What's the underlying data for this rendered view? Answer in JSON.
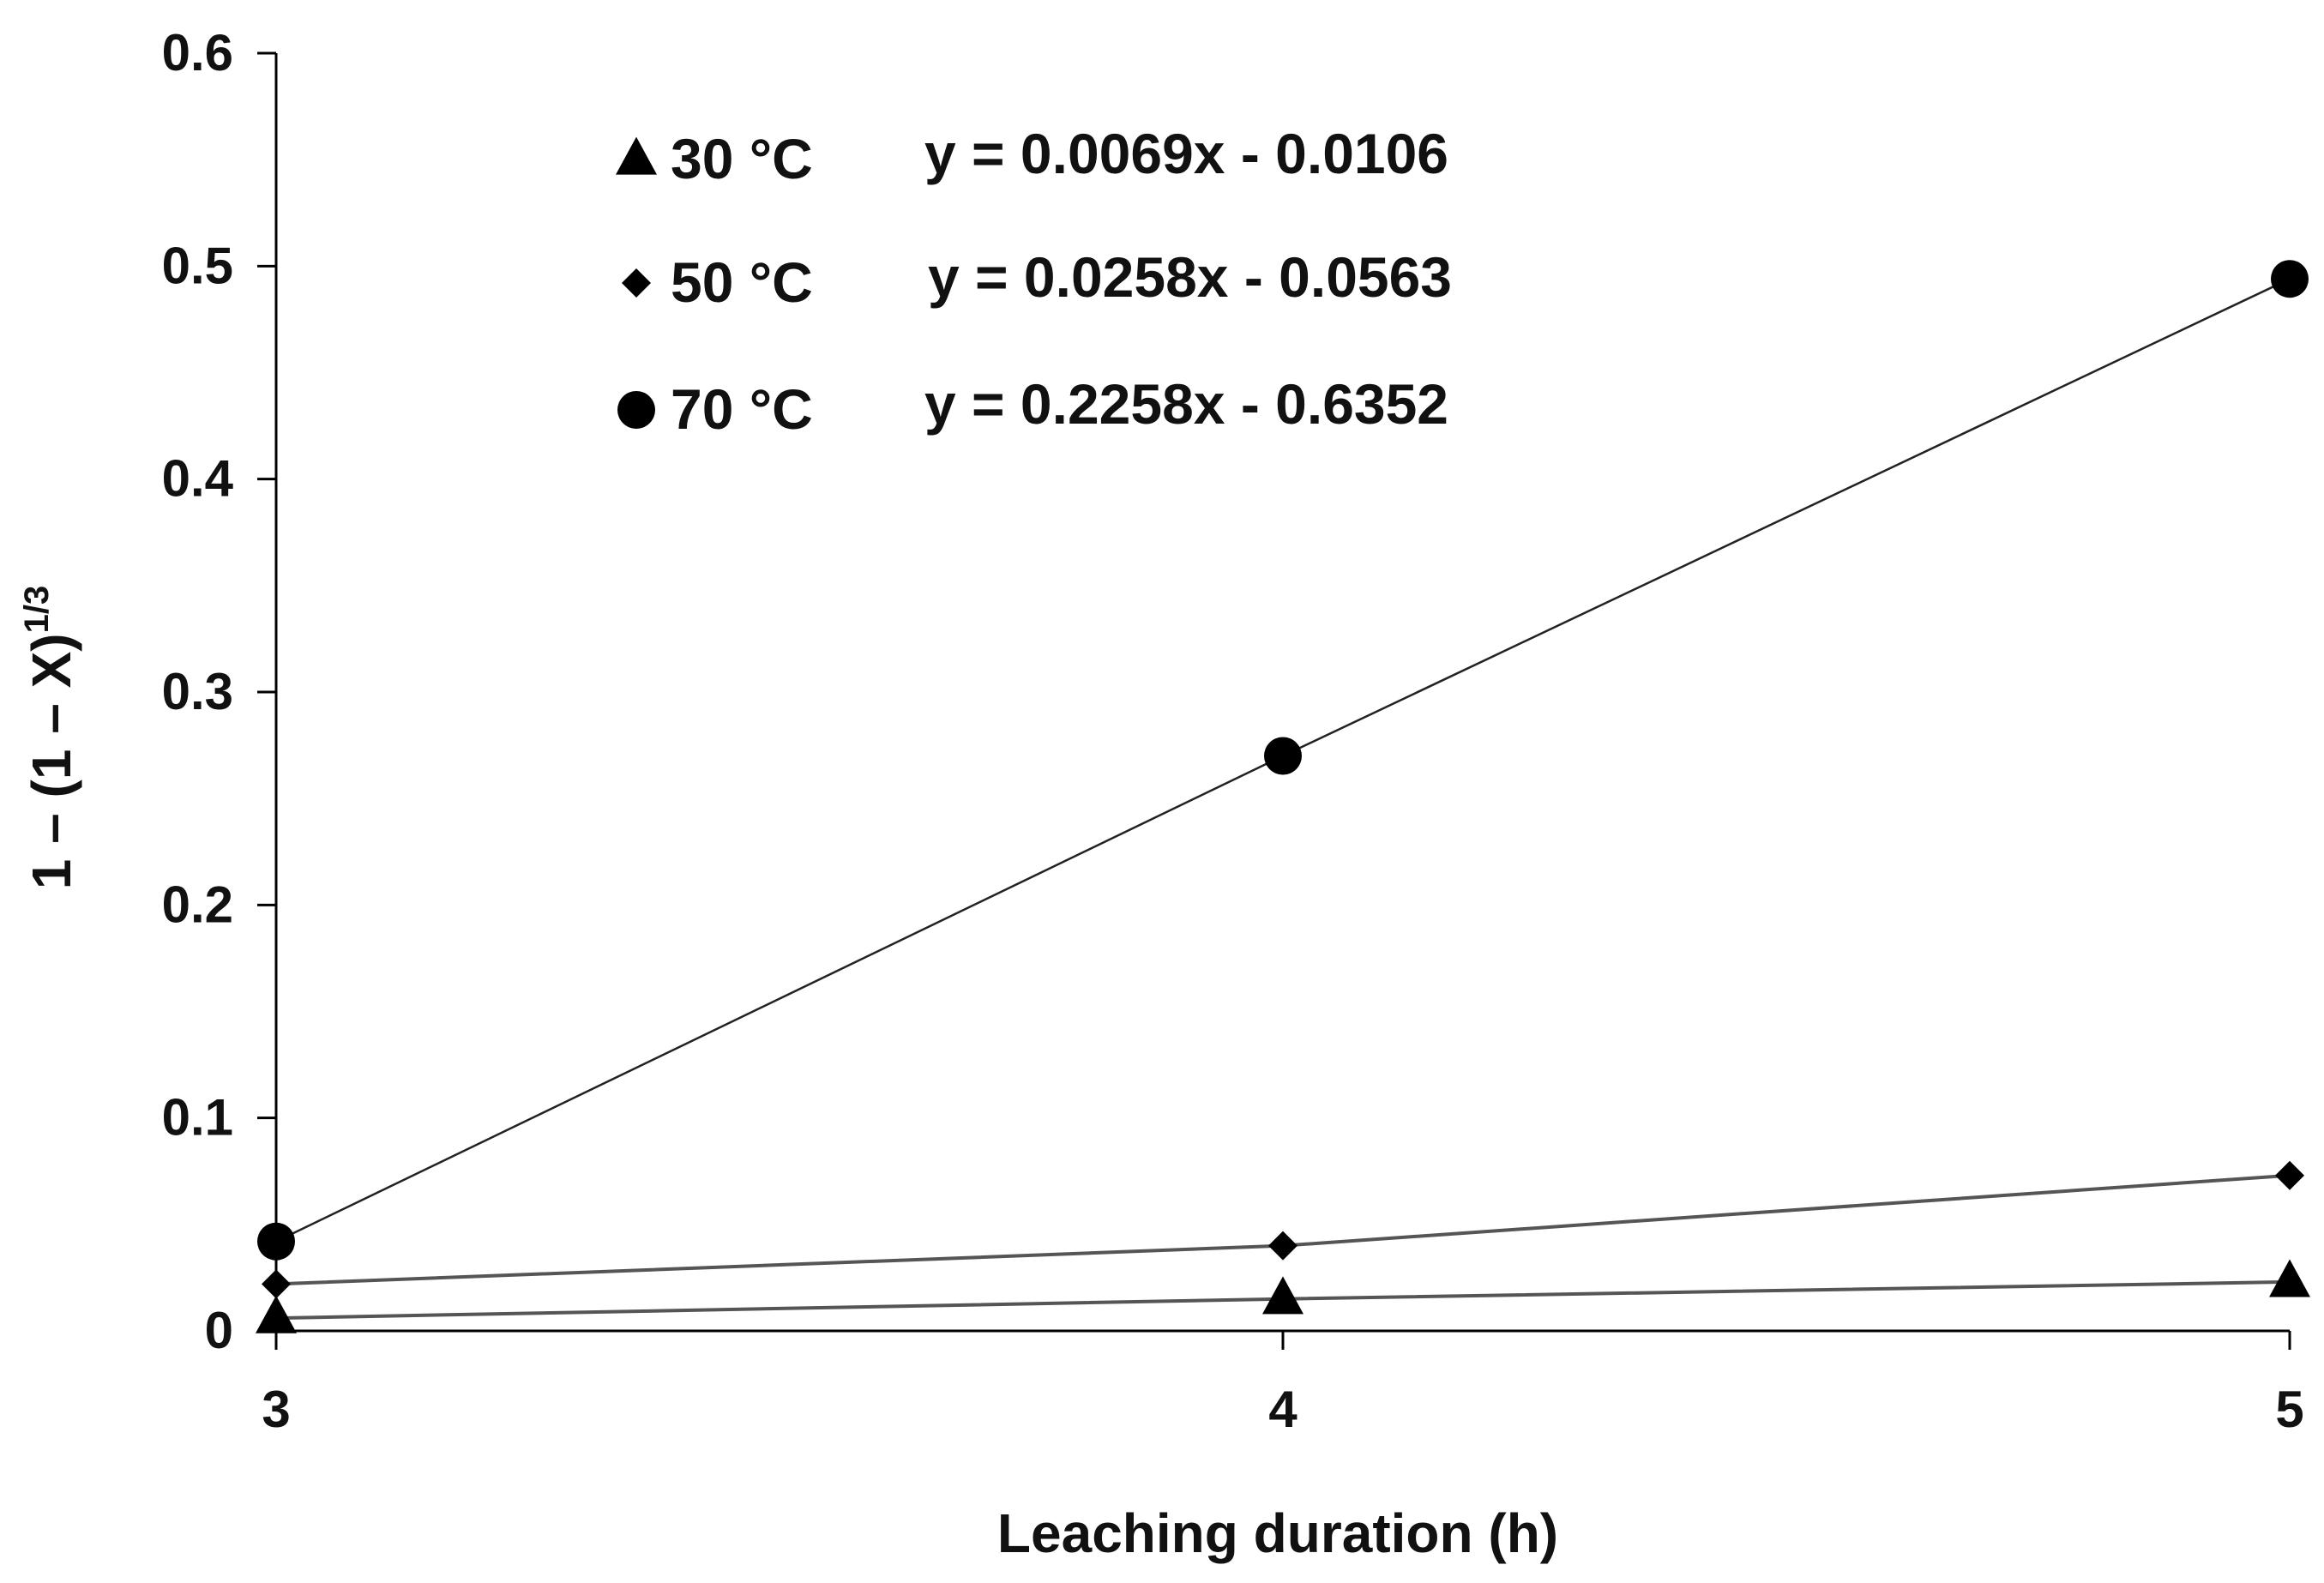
{
  "chart_data": {
    "type": "scatter",
    "xlabel": "Leaching duration (h)",
    "ylabel": "1 – (1 – X)",
    "ylabel_superscript": "1/3",
    "xlim": [
      3,
      5
    ],
    "ylim": [
      0,
      0.6
    ],
    "x_ticks": [
      "3",
      "4",
      "5"
    ],
    "y_ticks": [
      "0",
      "0.1",
      "0.2",
      "0.3",
      "0.4",
      "0.5",
      "0.6"
    ],
    "grid": false,
    "legend_position": "top-left",
    "series": [
      {
        "name": "30 °C",
        "marker": "triangle",
        "x": [
          3,
          4,
          5
        ],
        "y": [
          0.006,
          0.015,
          0.023
        ],
        "fit_equation": "y = 0.0069x  - 0.0106",
        "fit": {
          "slope": 0.0069,
          "intercept": -0.0106
        }
      },
      {
        "name": "50 °C",
        "marker": "diamond",
        "x": [
          3,
          4,
          5
        ],
        "y": [
          0.022,
          0.04,
          0.073
        ],
        "fit_equation": "y = 0.0258x  - 0.0563",
        "fit": {
          "slope": 0.0258,
          "intercept": -0.0563
        }
      },
      {
        "name": "70 °C",
        "marker": "circle",
        "x": [
          3,
          4,
          5
        ],
        "y": [
          0.042,
          0.27,
          0.494
        ],
        "fit_equation": "y = 0.2258x  - 0.6352",
        "fit": {
          "slope": 0.2258,
          "intercept": -0.6352
        }
      }
    ],
    "colors": {
      "marker": "#000000",
      "trendline": "#555555",
      "axis": "#000000"
    }
  }
}
